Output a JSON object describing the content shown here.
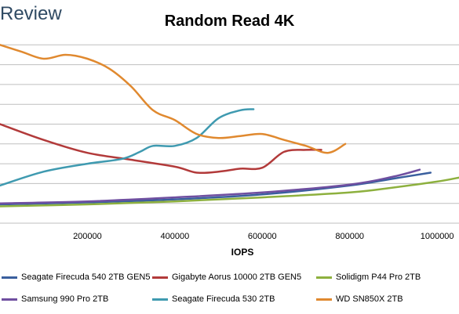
{
  "brand": "Review",
  "chart_data": {
    "type": "line",
    "title": "Random Read 4K",
    "xlabel": "IOPS",
    "ylabel": "",
    "xlim": [
      0,
      1050000
    ],
    "ylim": [
      0,
      10
    ],
    "xticks": [
      200000,
      400000,
      600000,
      800000,
      1000000
    ],
    "xtick_labels": [
      "200000",
      "400000",
      "600000",
      "800000",
      "1000000"
    ],
    "grid": "horizontal",
    "legend_position": "bottom",
    "series": [
      {
        "name": "Seagate Firecuda 540 2TB GEN5",
        "color": "#3a5f9e",
        "x": [
          0,
          200000,
          400000,
          600000,
          800000,
          900000,
          985000
        ],
        "y": [
          0.95,
          1.05,
          1.2,
          1.45,
          1.9,
          2.25,
          2.55
        ]
      },
      {
        "name": "Gigabyte Aorus 10000 2TB GEN5",
        "color": "#b23a3a",
        "x": [
          0,
          100000,
          200000,
          300000,
          400000,
          450000,
          500000,
          550000,
          600000,
          650000,
          700000,
          735000
        ],
        "y": [
          5.0,
          4.2,
          3.55,
          3.2,
          2.85,
          2.55,
          2.6,
          2.75,
          2.8,
          3.6,
          3.7,
          3.7
        ]
      },
      {
        "name": "Solidigm P44 Pro 2TB",
        "color": "#8db03e",
        "x": [
          0,
          200000,
          400000,
          600000,
          800000,
          900000,
          1000000,
          1050000
        ],
        "y": [
          0.85,
          0.95,
          1.1,
          1.3,
          1.55,
          1.8,
          2.1,
          2.3
        ]
      },
      {
        "name": "Samsung 990 Pro 2TB",
        "color": "#6f4fa0",
        "x": [
          0,
          200000,
          400000,
          600000,
          800000,
          900000,
          960000
        ],
        "y": [
          1.0,
          1.1,
          1.3,
          1.55,
          1.95,
          2.35,
          2.7
        ]
      },
      {
        "name": "Seagate Firecuda 530 2TB",
        "color": "#3f9ab0",
        "x": [
          0,
          100000,
          200000,
          280000,
          320000,
          350000,
          400000,
          450000,
          500000,
          550000,
          580000
        ],
        "y": [
          1.9,
          2.6,
          3.0,
          3.25,
          3.6,
          3.9,
          3.9,
          4.3,
          5.3,
          5.7,
          5.75
        ]
      },
      {
        "name": "WD SN850X 2TB",
        "color": "#e0892f",
        "x": [
          0,
          50000,
          100000,
          150000,
          200000,
          250000,
          300000,
          350000,
          400000,
          450000,
          500000,
          550000,
          600000,
          650000,
          700000,
          750000,
          790000
        ],
        "y": [
          9.0,
          8.65,
          8.3,
          8.5,
          8.3,
          7.8,
          6.9,
          5.7,
          5.2,
          4.5,
          4.3,
          4.4,
          4.5,
          4.2,
          3.9,
          3.55,
          4.0
        ]
      }
    ]
  }
}
